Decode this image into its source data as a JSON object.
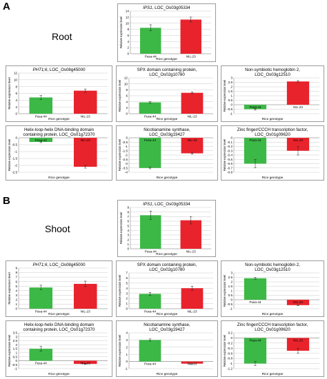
{
  "figure": {
    "panel_A_letter": "A",
    "panel_B_letter": "B",
    "section_A_label": "Root",
    "section_B_label": "Shoot",
    "colors": {
      "Pusa-44": "#3cb846",
      "NIL-23": "#e8232c",
      "grid": "#c8c8c8",
      "border": "#9a9a9a"
    }
  },
  "chart_data": [
    {
      "id": "A1",
      "type": "bar",
      "gene": "IPS1",
      "title_rest": ", LOC_Os03g05334",
      "categories": [
        "Pusa-44",
        "NIL-23"
      ],
      "values": [
        8.5,
        11.2
      ],
      "errors": [
        1.0,
        0.8
      ],
      "ylim": [
        0,
        14
      ],
      "yticks": [
        0,
        2,
        4,
        6,
        8,
        10,
        12,
        14
      ],
      "xlabel": "Rice genotype",
      "ylabel": "Relative expression level",
      "grid": true
    },
    {
      "id": "A2",
      "type": "bar",
      "gene": "PHT1;6",
      "title_rest": ", LOC_Os08g45000",
      "categories": [
        "Pusa-44",
        "NIL-23"
      ],
      "values": [
        4.8,
        6.8
      ],
      "errors": [
        0.6,
        0.5
      ],
      "ylim": [
        0,
        12
      ],
      "yticks": [
        0,
        2,
        4,
        6,
        8,
        10,
        12
      ],
      "xlabel": "Rice genotype",
      "ylabel": "Relative expression level",
      "grid": true
    },
    {
      "id": "A3",
      "type": "bar",
      "gene": "",
      "title_rest": "SPX domain containing protein,\nLOC_Os02g10780",
      "categories": [
        "Pusa-44",
        "NIL-23"
      ],
      "values": [
        3.8,
        7.0
      ],
      "errors": [
        0.3,
        0.3
      ],
      "ylim": [
        0,
        12
      ],
      "yticks": [
        0,
        2,
        4,
        6,
        8,
        10,
        12
      ],
      "xlabel": "Rice genotype",
      "ylabel": "Relative expression level",
      "grid": true
    },
    {
      "id": "A4",
      "type": "bar",
      "gene": "",
      "title_rest": "Non-symbiotic hemoglobin 2,\nLOC_Os03g12510",
      "categories": [
        "Pusa-44",
        "NIL-23"
      ],
      "values": [
        -0.5,
        2.6
      ],
      "errors": [
        0.1,
        0.1
      ],
      "ylim": [
        -1,
        3
      ],
      "yticks": [
        -1,
        -0.5,
        0,
        0.5,
        1,
        1.5,
        2,
        2.5,
        3
      ],
      "xlabel": "Rice genotype",
      "ylabel": "Relative expression level",
      "grid": true
    },
    {
      "id": "A5",
      "type": "bar",
      "gene": "",
      "title_rest": "Helix-loop-helix DNA-binding domain\ncontaining protein, LOC_Os01g72370",
      "categories": [
        "Pusa-44",
        "NIL-23"
      ],
      "values": [
        -0.3,
        -2.1
      ],
      "errors": [
        0.05,
        0.1
      ],
      "ylim": [
        -2.5,
        0
      ],
      "yticks": [
        -2.5,
        -2,
        -1.5,
        -1,
        -0.5,
        0
      ],
      "xlabel": "Rice genotype",
      "ylabel": "Relative expression level",
      "grid": true
    },
    {
      "id": "A6",
      "type": "bar",
      "gene": "",
      "title_rest": "Nicotianamine synthase,\nLOC_Os03g19427",
      "categories": [
        "Pusa-44",
        "NIL-23"
      ],
      "values": [
        -3.5,
        -1.8
      ],
      "errors": [
        0.1,
        0.1
      ],
      "ylim": [
        -4,
        0
      ],
      "yticks": [
        -4,
        -3.5,
        -3,
        -2.5,
        -2,
        -1.5,
        -1,
        -0.5,
        0
      ],
      "xlabel": "Rice genotype",
      "ylabel": "Relative expression level",
      "grid": true
    },
    {
      "id": "A7",
      "type": "bar",
      "gene": "",
      "title_rest": "Zinc finger/CCCH transcription factor,\nLOC_Os01g09620",
      "categories": [
        "Pusa-44",
        "NIL-23"
      ],
      "values": [
        -0.6,
        -0.3
      ],
      "errors": [
        0.1,
        0.1
      ],
      "ylim": [
        -0.8,
        0
      ],
      "yticks": [
        -0.8,
        -0.7,
        -0.6,
        -0.5,
        -0.4,
        -0.3,
        -0.2,
        -0.1,
        0
      ],
      "xlabel": "Rice genotype",
      "ylabel": "Relative expression level",
      "grid": true
    },
    {
      "id": "B1",
      "type": "bar",
      "gene": "IPS1",
      "title_rest": ", LOC_Os03g05334",
      "categories": [
        "Pusa-44",
        "NIL-23"
      ],
      "values": [
        7.3,
        6.2
      ],
      "errors": [
        0.9,
        0.8
      ],
      "ylim": [
        0,
        9
      ],
      "yticks": [
        0,
        1,
        2,
        3,
        4,
        5,
        6,
        7,
        8,
        9
      ],
      "xlabel": "Rice genotype",
      "ylabel": "Relative expression level",
      "grid": true
    },
    {
      "id": "B2",
      "type": "bar",
      "gene": "PHT1;6",
      "title_rest": ", LOC_Os08g45000",
      "categories": [
        "Pusa-44",
        "NIL-23"
      ],
      "values": [
        4.7,
        5.5
      ],
      "errors": [
        0.5,
        0.6
      ],
      "ylim": [
        0,
        9
      ],
      "yticks": [
        0,
        1,
        2,
        3,
        4,
        5,
        6,
        7,
        8,
        9
      ],
      "xlabel": "Rice genotype",
      "ylabel": "Relative expression level",
      "grid": true
    },
    {
      "id": "B3",
      "type": "bar",
      "gene": "",
      "title_rest": "SPX domain containing protein,\nLOC_Os02g10780",
      "categories": [
        "Pusa-44",
        "NIL-23"
      ],
      "values": [
        2.9,
        4.0
      ],
      "errors": [
        0.3,
        0.4
      ],
      "ylim": [
        0,
        7
      ],
      "yticks": [
        0,
        1,
        2,
        3,
        4,
        5,
        6,
        7
      ],
      "xlabel": "Rice genotype",
      "ylabel": "Relative expression level",
      "grid": true
    },
    {
      "id": "B4",
      "type": "bar",
      "gene": "",
      "title_rest": "Non-symbiotic hemoglobin 2,\nLOC_Os03g12510",
      "categories": [
        "Pusa-44",
        "NIL-23"
      ],
      "values": [
        2.4,
        -0.6
      ],
      "errors": [
        0.1,
        0.05
      ],
      "ylim": [
        -1,
        3
      ],
      "yticks": [
        -1,
        -0.5,
        0,
        0.5,
        1,
        1.5,
        2,
        2.5,
        3
      ],
      "xlabel": "Rice genotype",
      "ylabel": "Relative expression level",
      "grid": true
    },
    {
      "id": "B5",
      "type": "bar",
      "gene": "",
      "title_rest": "Helix-loop-helix DNA-binding domain\ncontaining protein, LOC_Os01g72370",
      "categories": [
        "Pusa-44",
        "NIL-23"
      ],
      "values": [
        1.5,
        -0.4
      ],
      "errors": [
        0.3,
        0.05
      ],
      "ylim": [
        -1,
        3.5
      ],
      "yticks": [
        -1,
        -0.5,
        0,
        0.5,
        1,
        1.5,
        2,
        2.5,
        3,
        3.5
      ],
      "xlabel": "Rice genotype",
      "ylabel": "Relative expression level",
      "grid": true
    },
    {
      "id": "B6",
      "type": "bar",
      "gene": "",
      "title_rest": "Nicotianamine synthase,\nLOC_Os03g19427",
      "categories": [
        "Pusa-44",
        "NIL-23"
      ],
      "values": [
        3.0,
        -0.3
      ],
      "errors": [
        0.15,
        0.05
      ],
      "ylim": [
        -1,
        4
      ],
      "yticks": [
        -1,
        0,
        1,
        2,
        3,
        4
      ],
      "xlabel": "Rice genotype",
      "ylabel": "Relative expression level",
      "grid": true
    },
    {
      "id": "B7",
      "type": "bar",
      "gene": "",
      "title_rest": "Zinc finger/CCCH transcription factor,\nLOC_Os01g09620",
      "categories": [
        "Pusa-44",
        "NIL-23"
      ],
      "values": [
        -1.0,
        -0.5
      ],
      "errors": [
        0.08,
        0.1
      ],
      "ylim": [
        -1.2,
        0.2
      ],
      "yticks": [
        -1.2,
        -1,
        -0.8,
        -0.6,
        -0.4,
        -0.2,
        0,
        0.2
      ],
      "xlabel": "Rice genotype",
      "ylabel": "Relative expression level",
      "grid": true
    }
  ]
}
